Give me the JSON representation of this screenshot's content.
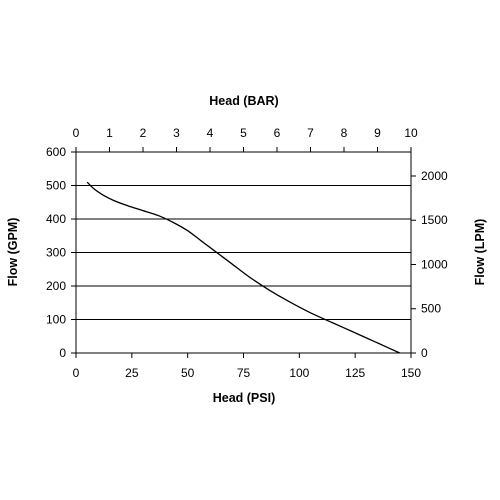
{
  "chart_data": {
    "type": "line",
    "xlabel": "Head (PSI)",
    "ylabel": "Flow (GPM)",
    "x2label": "Head (BAR)",
    "y2label": "Flow (LPM)",
    "xlim": [
      0,
      150
    ],
    "ylim": [
      0,
      600
    ],
    "x2lim": [
      0,
      10
    ],
    "y2lim": [
      0,
      2271
    ],
    "xticks": [
      "0",
      "25",
      "50",
      "75",
      "100",
      "125",
      "150"
    ],
    "yticks": [
      "0",
      "100",
      "200",
      "300",
      "400",
      "500",
      "600"
    ],
    "x2ticks": [
      "0",
      "1",
      "2",
      "3",
      "4",
      "5",
      "6",
      "7",
      "8",
      "9",
      "10"
    ],
    "y2ticks": [
      "0",
      "500",
      "1000",
      "1500",
      "2000"
    ],
    "grid": "horizontal",
    "series": [
      {
        "x": [
          5,
          8,
          12,
          17,
          23,
          30,
          37,
          44,
          50,
          56,
          62,
          70,
          78,
          86,
          95,
          105,
          115,
          125,
          135,
          145
        ],
        "y": [
          510,
          490,
          472,
          455,
          440,
          425,
          410,
          388,
          365,
          335,
          305,
          265,
          225,
          190,
          155,
          120,
          90,
          60,
          30,
          0
        ]
      }
    ]
  }
}
